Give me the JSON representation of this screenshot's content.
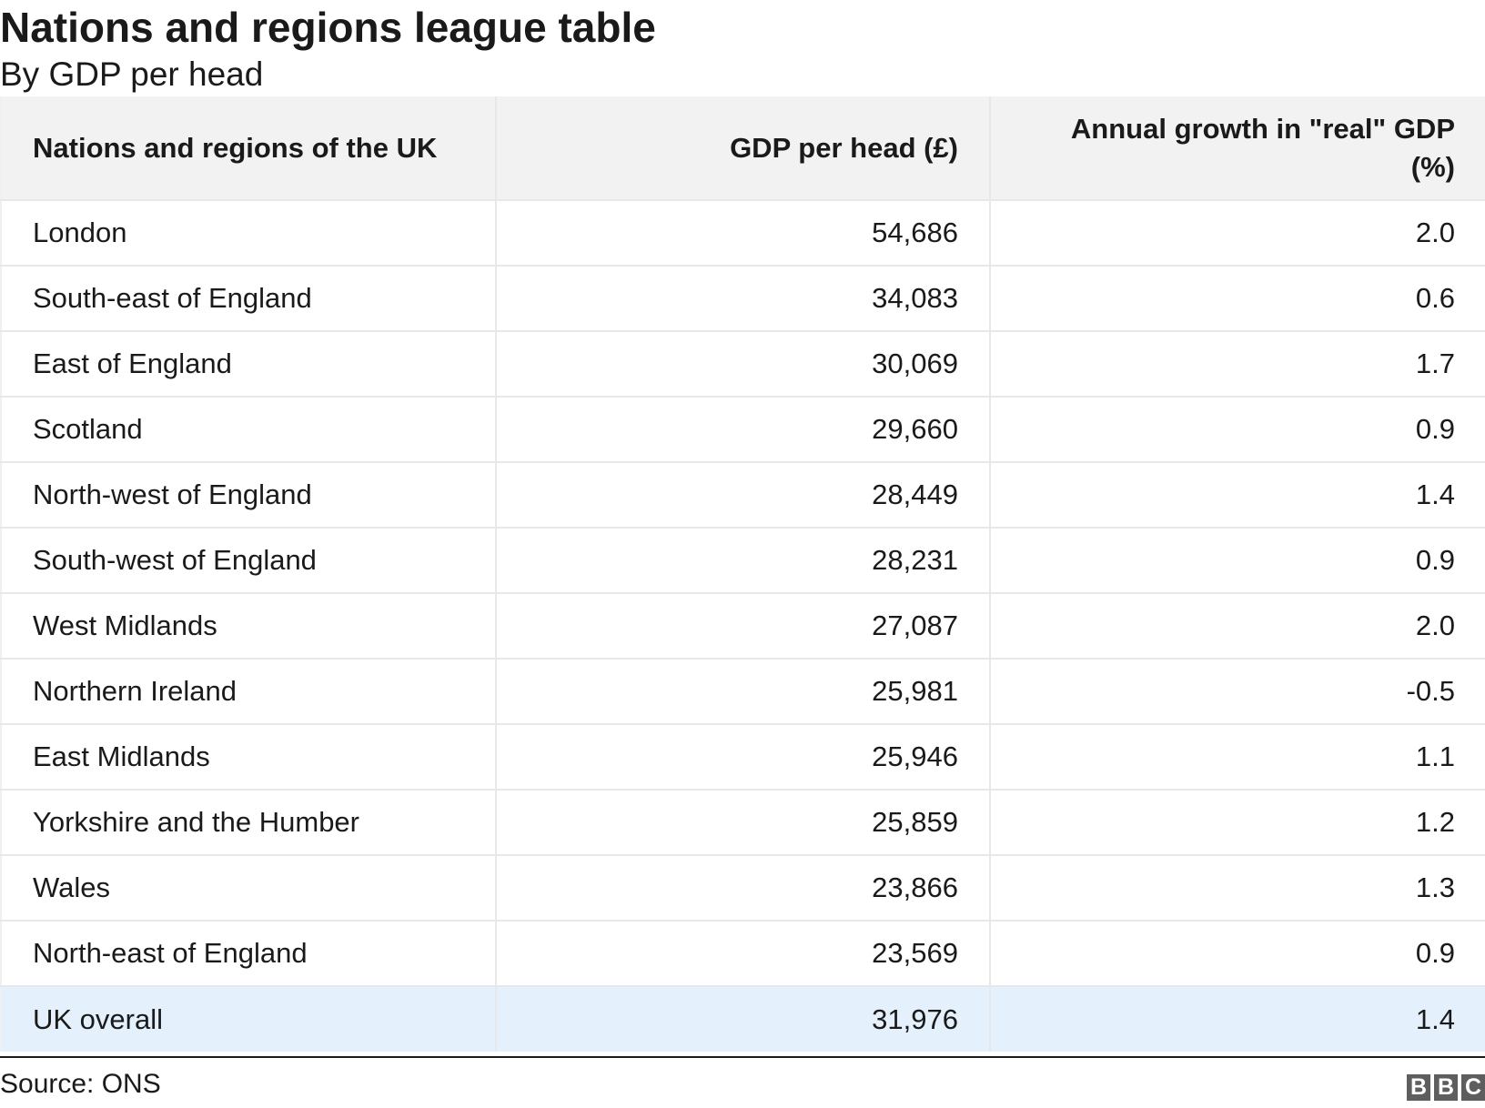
{
  "chart_data": {
    "type": "table",
    "title": "Nations and regions league table",
    "subtitle": "By GDP per head",
    "columns": [
      "Nations and regions of the UK",
      "GDP per head (£)",
      "Annual growth in \"real\" GDP (%)"
    ],
    "rows": [
      [
        "London",
        "54,686",
        "2.0"
      ],
      [
        "South-east of England",
        "34,083",
        "0.6"
      ],
      [
        "East of England",
        "30,069",
        "1.7"
      ],
      [
        "Scotland",
        "29,660",
        "0.9"
      ],
      [
        "North-west of England",
        "28,449",
        "1.4"
      ],
      [
        "South-west of England",
        "28,231",
        "0.9"
      ],
      [
        "West Midlands",
        "27,087",
        "2.0"
      ],
      [
        "Northern Ireland",
        "25,981",
        "-0.5"
      ],
      [
        "East Midlands",
        "25,946",
        "1.1"
      ],
      [
        "Yorkshire and the Humber",
        "25,859",
        "1.2"
      ],
      [
        "Wales",
        "23,866",
        "1.3"
      ],
      [
        "North-east of England",
        "23,569",
        "0.9"
      ],
      [
        "UK overall",
        "31,976",
        "1.4"
      ]
    ],
    "highlight_row_color": "#e4f0fb",
    "header_bg_color": "#f2f2f2"
  },
  "footer": {
    "source": "Source: ONS",
    "logo_letters": [
      "B",
      "B",
      "C"
    ]
  }
}
